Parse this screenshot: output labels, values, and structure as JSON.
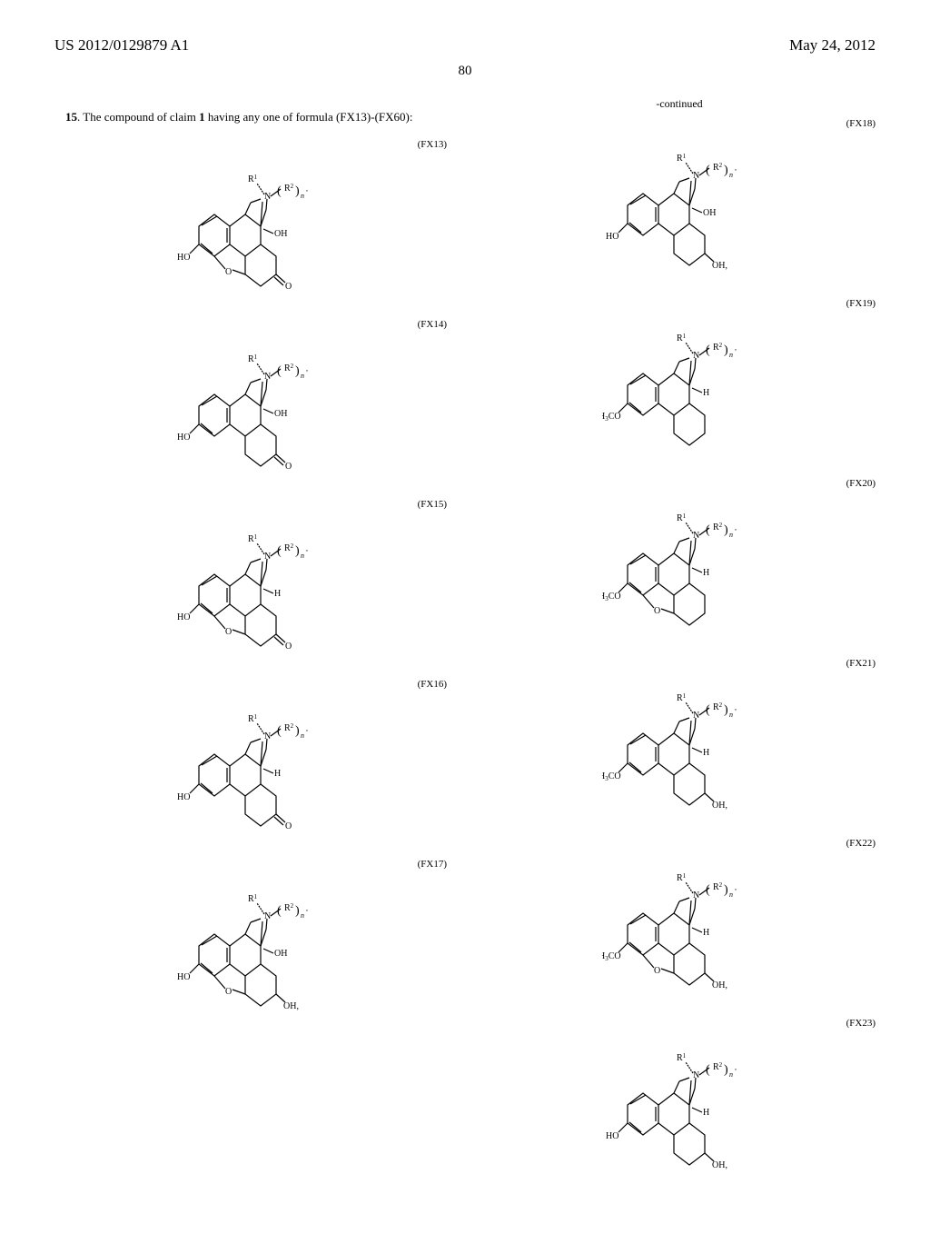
{
  "header": {
    "left": "US 2012/0129879 A1",
    "right": "May 24, 2012"
  },
  "page_number": "80",
  "claim": {
    "number": "15",
    "text_before": ". The compound of claim ",
    "ref": "1",
    "text_after": " having any one of formula (FX13)-(FX60):"
  },
  "continued": "-continued",
  "left_formulas": [
    {
      "label": "(FX13)",
      "c14": "OH",
      "bottom_left": "HO",
      "furan": true,
      "c6": "O",
      "c7_oh": false
    },
    {
      "label": "(FX14)",
      "c14": "OH",
      "bottom_left": "HO",
      "furan": false,
      "c6": "O",
      "c7_oh": false
    },
    {
      "label": "(FX15)",
      "c14": "H",
      "bottom_left": "HO",
      "furan": true,
      "c6": "O",
      "c7_oh": false
    },
    {
      "label": "(FX16)",
      "c14": "H",
      "bottom_left": "HO",
      "furan": false,
      "c6": "O",
      "c7_oh": false
    },
    {
      "label": "(FX17)",
      "c14": "OH",
      "bottom_left": "HO",
      "furan": true,
      "c6": "",
      "c7_oh": true
    }
  ],
  "right_formulas": [
    {
      "label": "(FX18)",
      "c14": "OH",
      "bottom_left": "HO",
      "furan": false,
      "c6": "",
      "c7_oh": true
    },
    {
      "label": "(FX19)",
      "c14": "H",
      "bottom_left": "H₃CO",
      "furan": false,
      "c6": "",
      "c7_oh": false
    },
    {
      "label": "(FX20)",
      "c14": "H",
      "bottom_left": "H₃CO",
      "furan": true,
      "c6": "",
      "c7_oh": false
    },
    {
      "label": "(FX21)",
      "c14": "H",
      "bottom_left": "H₃CO",
      "furan": false,
      "c6": "",
      "c7_oh": true
    },
    {
      "label": "(FX22)",
      "c14": "H",
      "bottom_left": "H₃CO",
      "furan": true,
      "c6": "",
      "c7_oh": true
    },
    {
      "label": "(FX23)",
      "c14": "H",
      "bottom_left": "HO",
      "furan": false,
      "c6": "",
      "c7_oh": true
    }
  ],
  "r_group": {
    "r1": "R¹",
    "r2": "R²",
    "n": "n",
    "nitrogen": "N"
  },
  "style": {
    "background": "#ffffff",
    "text_color": "#000000",
    "font_family": "Times New Roman",
    "header_fontsize": 17,
    "pagenum_fontsize": 15,
    "claim_fontsize": 13,
    "label_fontsize": 11,
    "atom_fontsize": 10,
    "bond_width": 1.2
  }
}
